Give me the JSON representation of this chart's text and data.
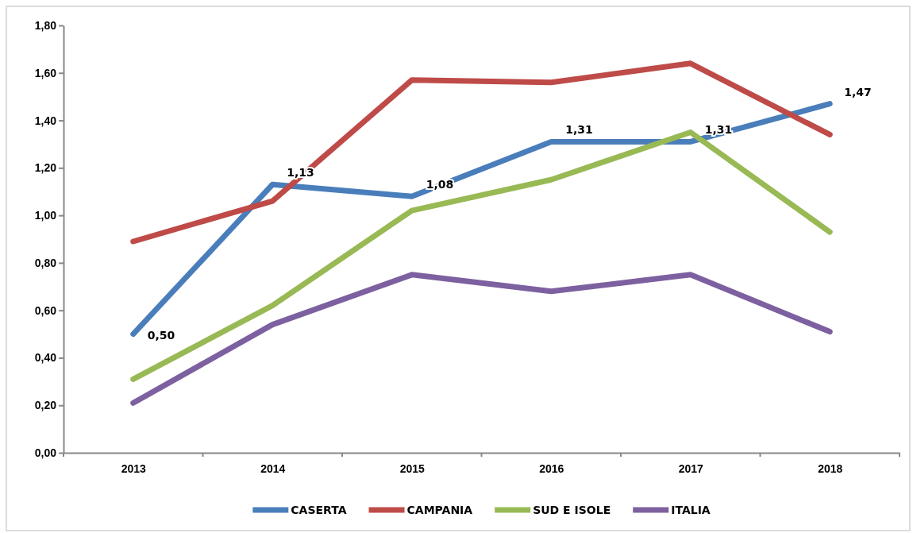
{
  "chart_data": {
    "type": "line",
    "categories": [
      "2013",
      "2014",
      "2015",
      "2016",
      "2017",
      "2018"
    ],
    "series": [
      {
        "name": "CASERTA",
        "color": "#4a7ebb",
        "values": [
          0.5,
          1.13,
          1.08,
          1.31,
          1.31,
          1.47
        ],
        "value_labels": [
          "0,50",
          "1,13",
          "1,08",
          "1,31",
          "1,31",
          "1,47"
        ]
      },
      {
        "name": "CAMPANIA",
        "color": "#be4b48",
        "values": [
          0.89,
          1.06,
          1.57,
          1.56,
          1.64,
          1.34
        ]
      },
      {
        "name": "SUD E ISOLE",
        "color": "#98b954",
        "values": [
          0.31,
          0.62,
          1.02,
          1.15,
          1.35,
          0.93
        ]
      },
      {
        "name": "ITALIA",
        "color": "#7d60a0",
        "values": [
          0.21,
          0.54,
          0.75,
          0.68,
          0.75,
          0.51
        ]
      }
    ],
    "ylim": [
      0,
      1.8
    ],
    "yticks": [
      {
        "value": 0,
        "label": "0,00"
      },
      {
        "value": 0.2,
        "label": "0,20"
      },
      {
        "value": 0.4,
        "label": "0,40"
      },
      {
        "value": 0.6,
        "label": "0,60"
      },
      {
        "value": 0.8,
        "label": "0,80"
      },
      {
        "value": 1.0,
        "label": "1,00"
      },
      {
        "value": 1.2,
        "label": "1,20"
      },
      {
        "value": 1.4,
        "label": "1,40"
      },
      {
        "value": 1.6,
        "label": "1,60"
      },
      {
        "value": 1.8,
        "label": "1,80"
      }
    ],
    "legend": "bottom",
    "line_style": "solid",
    "marker": "none"
  }
}
